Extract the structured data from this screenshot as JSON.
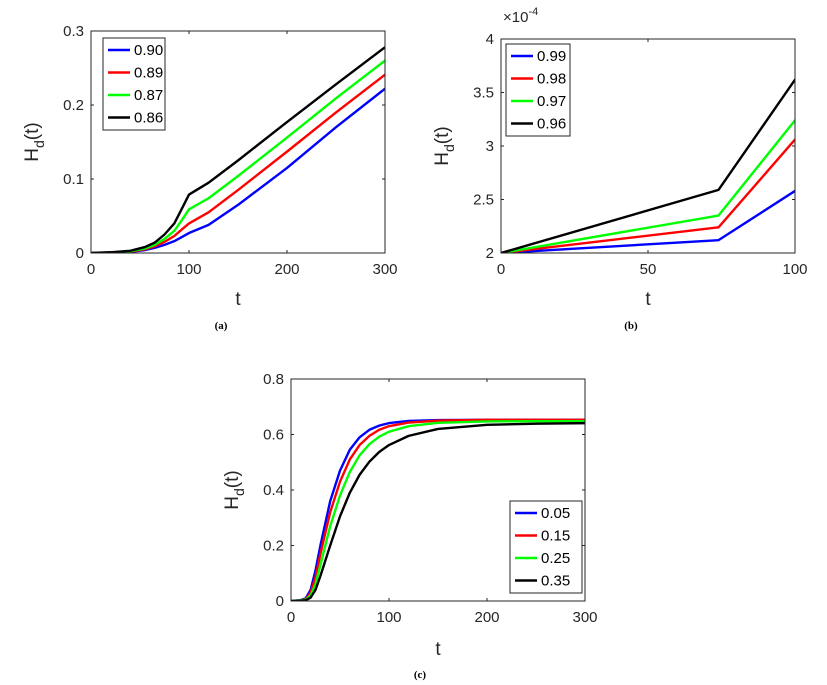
{
  "chart_data": [
    {
      "id": "a",
      "type": "line",
      "caption": "(a)",
      "xlabel": "t",
      "ylabel_main": "H",
      "ylabel_sub": "d",
      "ylabel_arg": "(t)",
      "xlim": [
        0,
        300
      ],
      "ylim": [
        0,
        0.3
      ],
      "xticks": [
        0,
        100,
        200,
        300
      ],
      "xtick_labels": [
        "0",
        "100",
        "200",
        "300"
      ],
      "yticks": [
        0,
        0.1,
        0.2,
        0.3
      ],
      "ytick_labels": [
        "0",
        "0.1",
        "0.2",
        "0.3"
      ],
      "exponent": "",
      "legend_position": "top-left",
      "series": [
        {
          "name": "0.90",
          "color": "#0000ff",
          "x": [
            0,
            20,
            40,
            55,
            65,
            75,
            85,
            92,
            100,
            120,
            150,
            200,
            250,
            300
          ],
          "y": [
            0,
            0.0005,
            0.0015,
            0.004,
            0.007,
            0.011,
            0.016,
            0.021,
            0.027,
            0.038,
            0.065,
            0.115,
            0.17,
            0.222
          ]
        },
        {
          "name": "0.89",
          "color": "#ff0000",
          "x": [
            0,
            20,
            40,
            55,
            65,
            75,
            85,
            92,
            100,
            120,
            150,
            200,
            250,
            300
          ],
          "y": [
            0,
            0.0006,
            0.002,
            0.005,
            0.009,
            0.015,
            0.023,
            0.031,
            0.04,
            0.055,
            0.085,
            0.137,
            0.19,
            0.241
          ]
        },
        {
          "name": "0.87",
          "color": "#00ff00",
          "x": [
            0,
            20,
            40,
            55,
            65,
            75,
            85,
            92,
            100,
            120,
            150,
            200,
            250,
            300
          ],
          "y": [
            0,
            0.0008,
            0.0025,
            0.006,
            0.011,
            0.019,
            0.03,
            0.043,
            0.059,
            0.074,
            0.104,
            0.156,
            0.209,
            0.26
          ]
        },
        {
          "name": "0.86",
          "color": "#000000",
          "x": [
            0,
            20,
            40,
            55,
            65,
            75,
            85,
            92,
            100,
            120,
            150,
            200,
            250,
            300
          ],
          "y": [
            0,
            0.001,
            0.003,
            0.008,
            0.014,
            0.025,
            0.04,
            0.058,
            0.079,
            0.095,
            0.125,
            0.177,
            0.228,
            0.278
          ]
        }
      ]
    },
    {
      "id": "b",
      "type": "line",
      "caption": "(b)",
      "xlabel": "t",
      "ylabel_main": "H",
      "ylabel_sub": "d",
      "ylabel_arg": "(t)",
      "xlim": [
        0,
        100
      ],
      "ylim": [
        2,
        4
      ],
      "xticks": [
        0,
        50,
        100
      ],
      "xtick_labels": [
        "0",
        "50",
        "100"
      ],
      "yticks": [
        2,
        2.5,
        3,
        3.5,
        4
      ],
      "ytick_labels": [
        "2",
        "2.5",
        "3",
        "3.5",
        "4"
      ],
      "exponent": "×10",
      "exponent_power": "-4",
      "legend_position": "top-left",
      "series": [
        {
          "name": "0.99",
          "color": "#0000ff",
          "x": [
            0,
            74,
            100
          ],
          "y": [
            2,
            2.12,
            2.58
          ]
        },
        {
          "name": "0.98",
          "color": "#ff0000",
          "x": [
            0,
            74,
            100
          ],
          "y": [
            2,
            2.24,
            3.06
          ]
        },
        {
          "name": "0.97",
          "color": "#00ff00",
          "x": [
            0,
            74,
            100
          ],
          "y": [
            2,
            2.35,
            3.24
          ]
        },
        {
          "name": "0.96",
          "color": "#000000",
          "x": [
            0,
            74,
            100
          ],
          "y": [
            2,
            2.59,
            3.62
          ]
        }
      ]
    },
    {
      "id": "c",
      "type": "line",
      "caption": "(c)",
      "xlabel": "t",
      "ylabel_main": "H",
      "ylabel_sub": "d",
      "ylabel_arg": "(t)",
      "xlim": [
        0,
        300
      ],
      "ylim": [
        0,
        0.8
      ],
      "xticks": [
        0,
        100,
        200,
        300
      ],
      "xtick_labels": [
        "0",
        "100",
        "200",
        "300"
      ],
      "yticks": [
        0,
        0.2,
        0.4,
        0.6,
        0.8
      ],
      "ytick_labels": [
        "0",
        "0.2",
        "0.4",
        "0.6",
        "0.8"
      ],
      "exponent": "",
      "legend_position": "bottom-right",
      "series": [
        {
          "name": "0.05",
          "color": "#0000ff",
          "x": [
            0,
            10,
            15,
            20,
            25,
            30,
            40,
            50,
            60,
            70,
            80,
            90,
            100,
            120,
            150,
            200,
            250,
            300
          ],
          "y": [
            0,
            0.003,
            0.01,
            0.04,
            0.11,
            0.2,
            0.36,
            0.47,
            0.545,
            0.59,
            0.617,
            0.632,
            0.641,
            0.649,
            0.652,
            0.653,
            0.653,
            0.653
          ]
        },
        {
          "name": "0.15",
          "color": "#ff0000",
          "x": [
            0,
            10,
            15,
            20,
            25,
            30,
            40,
            50,
            60,
            70,
            80,
            90,
            100,
            120,
            150,
            200,
            250,
            300
          ],
          "y": [
            0,
            0.002,
            0.007,
            0.03,
            0.085,
            0.17,
            0.32,
            0.43,
            0.51,
            0.562,
            0.595,
            0.617,
            0.63,
            0.643,
            0.65,
            0.653,
            0.653,
            0.653
          ]
        },
        {
          "name": "0.25",
          "color": "#00ff00",
          "x": [
            0,
            10,
            15,
            20,
            25,
            30,
            40,
            50,
            60,
            70,
            80,
            90,
            100,
            120,
            150,
            200,
            250,
            300
          ],
          "y": [
            0,
            0.002,
            0.005,
            0.02,
            0.06,
            0.13,
            0.27,
            0.38,
            0.465,
            0.525,
            0.565,
            0.592,
            0.61,
            0.63,
            0.642,
            0.647,
            0.648,
            0.648
          ]
        },
        {
          "name": "0.35",
          "color": "#000000",
          "x": [
            0,
            10,
            15,
            20,
            25,
            30,
            40,
            50,
            60,
            70,
            80,
            90,
            100,
            120,
            150,
            200,
            250,
            300
          ],
          "y": [
            0,
            0.001,
            0.003,
            0.012,
            0.04,
            0.09,
            0.2,
            0.305,
            0.39,
            0.455,
            0.502,
            0.537,
            0.562,
            0.595,
            0.62,
            0.635,
            0.639,
            0.641
          ]
        }
      ]
    }
  ]
}
